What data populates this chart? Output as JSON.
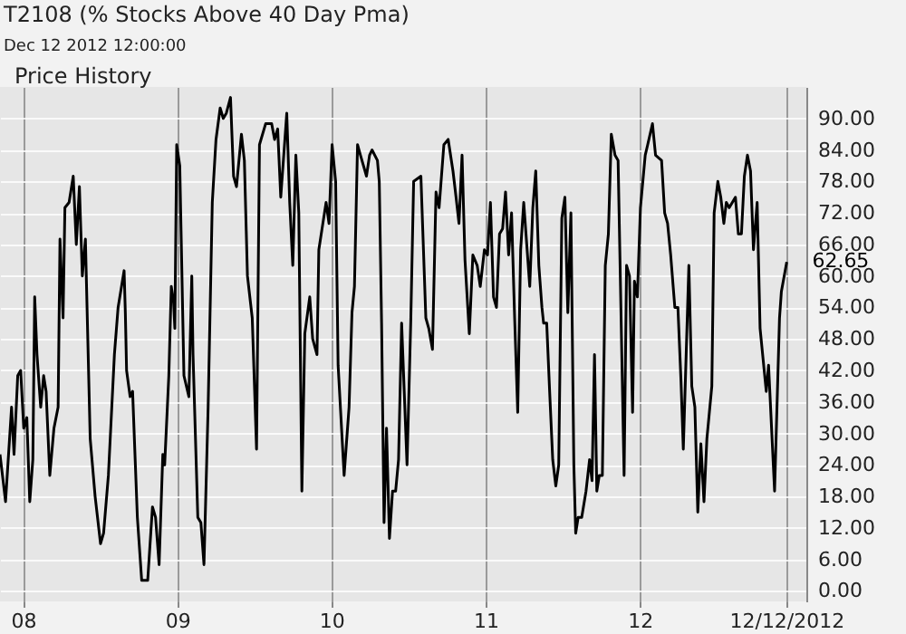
{
  "chart_data": {
    "type": "line",
    "title": "T2108 (% Stocks Above 40 Day Pma)",
    "subtitle": "Dec 12 2012 12:00:00",
    "annotations": [
      "Price History",
      {
        "text": "62.65",
        "x": 2012.953,
        "y": 62.65
      }
    ],
    "x": [
      2007.85,
      2007.886,
      2007.925,
      2007.941,
      2007.965,
      2007.984,
      2008.004,
      2008.024,
      2008.043,
      2008.063,
      2008.075,
      2008.09,
      2008.114,
      2008.133,
      2008.149,
      2008.173,
      2008.2,
      2008.227,
      2008.239,
      2008.259,
      2008.271,
      2008.298,
      2008.325,
      2008.345,
      2008.365,
      2008.384,
      2008.404,
      2008.435,
      2008.467,
      2008.502,
      2008.522,
      2008.553,
      2008.592,
      2008.616,
      2008.655,
      2008.663,
      2008.671,
      2008.694,
      2008.71,
      2008.741,
      2008.769,
      2008.808,
      2008.839,
      2008.859,
      2008.882,
      2008.906,
      2008.918,
      2008.945,
      2008.961,
      2008.976,
      2008.984,
      2008.996,
      2009.016,
      2009.043,
      2009.075,
      2009.094,
      2009.102,
      2009.133,
      2009.153,
      2009.173,
      2009.2,
      2009.227,
      2009.251,
      2009.278,
      2009.298,
      2009.318,
      2009.345,
      2009.365,
      2009.384,
      2009.416,
      2009.435,
      2009.455,
      2009.486,
      2009.514,
      2009.533,
      2009.573,
      2009.612,
      2009.631,
      2009.651,
      2009.671,
      2009.71,
      2009.729,
      2009.749,
      2009.769,
      2009.788,
      2009.808,
      2009.827,
      2009.859,
      2009.878,
      2009.906,
      2009.918,
      2009.965,
      2009.984,
      2010.004,
      2010.027,
      2010.043,
      2010.082,
      2010.114,
      2010.133,
      2010.149,
      2010.169,
      2010.188,
      2010.227,
      2010.247,
      2010.263,
      2010.298,
      2010.31,
      2010.325,
      2010.341,
      2010.357,
      2010.376,
      2010.396,
      2010.416,
      2010.435,
      2010.455,
      2010.49,
      2010.514,
      2010.533,
      2010.58,
      2010.612,
      2010.631,
      2010.655,
      2010.678,
      2010.698,
      2010.729,
      2010.757,
      2010.788,
      2010.808,
      2010.827,
      2010.847,
      2010.866,
      2010.894,
      2010.917,
      2010.945,
      2010.965,
      2010.992,
      2011.012,
      2011.031,
      2011.051,
      2011.07,
      2011.09,
      2011.11,
      2011.129,
      2011.149,
      2011.168,
      2011.188,
      2011.208,
      2011.227,
      2011.247,
      2011.286,
      2011.306,
      2011.325,
      2011.345,
      2011.365,
      2011.376,
      2011.396,
      2011.415,
      2011.435,
      2011.455,
      2011.474,
      2011.494,
      2011.514,
      2011.533,
      2011.553,
      2011.572,
      2011.584,
      2011.6,
      2011.623,
      2011.651,
      2011.674,
      2011.69,
      2011.706,
      2011.721,
      2011.737,
      2011.757,
      2011.776,
      2011.796,
      2011.815,
      2011.839,
      2011.859,
      2011.898,
      2011.914,
      2011.933,
      2011.953,
      2011.965,
      2011.984,
      2012.004,
      2012.035,
      2012.051,
      2012.082,
      2012.102,
      2012.141,
      2012.161,
      2012.18,
      2012.2,
      2012.227,
      2012.247,
      2012.267,
      2012.282,
      2012.318,
      2012.337,
      2012.357,
      2012.376,
      2012.396,
      2012.416,
      2012.435,
      2012.467,
      2012.482,
      2012.506,
      2012.525,
      2012.545,
      2012.561,
      2012.58,
      2012.62,
      2012.639,
      2012.659,
      2012.678,
      2012.698,
      2012.718,
      2012.737,
      2012.761,
      2012.78,
      2012.82,
      2012.835,
      2012.874,
      2012.906,
      2012.918,
      2012.953
    ],
    "series": [
      {
        "color": "#000000",
        "values": [
          26,
          17,
          35,
          26,
          41,
          42,
          31,
          33,
          17,
          25,
          56,
          45,
          35,
          41,
          38,
          22,
          31,
          35,
          67,
          52,
          73,
          74,
          79,
          66,
          77,
          60,
          67,
          29,
          18,
          9,
          11,
          22,
          45,
          54,
          61,
          53,
          42,
          37,
          38,
          14,
          2,
          2,
          16,
          14,
          5,
          26,
          24,
          41,
          58,
          55,
          50,
          85,
          81,
          41,
          37,
          60,
          45,
          14,
          13,
          5,
          35,
          74,
          86,
          92,
          90,
          91,
          94,
          79,
          77,
          87,
          82,
          60,
          52,
          27,
          85,
          89,
          89,
          86,
          88,
          75,
          91,
          74,
          62,
          83,
          72,
          19,
          49,
          56,
          48,
          45,
          65,
          74,
          70,
          85,
          78,
          43,
          22,
          35,
          53,
          58,
          85,
          83,
          79,
          83,
          84,
          82,
          78,
          51,
          13,
          31,
          10,
          19,
          19,
          25,
          51,
          24,
          51,
          78,
          79,
          52,
          50,
          46,
          76,
          73,
          85,
          86,
          80,
          75,
          70,
          83,
          63,
          49,
          64,
          62,
          58,
          65,
          64,
          74,
          56,
          54,
          68,
          69,
          76,
          64,
          72,
          52,
          34,
          65,
          74,
          58,
          73,
          80,
          62,
          54,
          51,
          51,
          38,
          25,
          20,
          24,
          71,
          75,
          53,
          72,
          24,
          11,
          14,
          14,
          19,
          25,
          21,
          45,
          19,
          22,
          22,
          62,
          68,
          87,
          83,
          82,
          22,
          62,
          60,
          34,
          59,
          56,
          73,
          83,
          85,
          89,
          83,
          82,
          72,
          70,
          64,
          54,
          54,
          40,
          27,
          62,
          39,
          35,
          15,
          28,
          17,
          29,
          39,
          72,
          78,
          75,
          70,
          74,
          73,
          75,
          68,
          68,
          79,
          83,
          80,
          65,
          74,
          50,
          38,
          43,
          19,
          52,
          57,
          62.65
        ]
      }
    ],
    "xlim": [
      2007.85,
      2013.08
    ],
    "xticks": [
      {
        "value": 2008,
        "label": "08"
      },
      {
        "value": 2009,
        "label": "09"
      },
      {
        "value": 2010,
        "label": "10"
      },
      {
        "value": 2011,
        "label": "11"
      },
      {
        "value": 2012,
        "label": "12"
      },
      {
        "value": 2012.95,
        "label": "12/12/2012"
      }
    ],
    "ylim": [
      -2,
      96
    ],
    "yticks": [
      {
        "value": 0,
        "label": "0.00"
      },
      {
        "value": 6,
        "label": "6.00"
      },
      {
        "value": 12,
        "label": "12.00"
      },
      {
        "value": 18,
        "label": "18.00"
      },
      {
        "value": 24,
        "label": "24.00"
      },
      {
        "value": 30,
        "label": "30.00"
      },
      {
        "value": 36,
        "label": "36.00"
      },
      {
        "value": 42,
        "label": "42.00"
      },
      {
        "value": 48,
        "label": "48.00"
      },
      {
        "value": 54,
        "label": "54.00"
      },
      {
        "value": 60,
        "label": "60.00"
      },
      {
        "value": 66,
        "label": "66.00"
      },
      {
        "value": 72,
        "label": "72.00"
      },
      {
        "value": 78,
        "label": "78.00"
      },
      {
        "value": 84,
        "label": "84.00"
      },
      {
        "value": 90,
        "label": "90.00"
      }
    ],
    "grid": true
  }
}
